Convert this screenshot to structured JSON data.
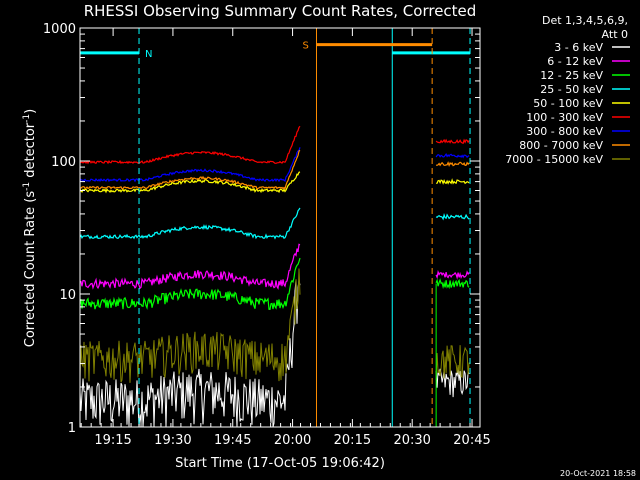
{
  "chart_data": {
    "type": "line",
    "title": "RHESSI Observing Summary Count Rates, Corrected",
    "xlabel": "Start Time (17-Oct-05 19:06:42)",
    "ylabel": "Corrected Count Rate (s",
    "ylabel_sup1": "-1",
    "ylabel_mid": " detector",
    "ylabel_sup2": "-1",
    "ylabel_end": ")",
    "yscale": "log",
    "ylim": [
      1,
      1000
    ],
    "xlim": [
      "19:06:42",
      "20:47:00"
    ],
    "x_ticks": [
      "19:15",
      "19:30",
      "19:45",
      "20:00",
      "20:15",
      "20:30",
      "20:45"
    ],
    "y_ticks": [
      "1",
      "10",
      "100",
      "1000"
    ],
    "legend_header": [
      "Det 1,3,4,5,6,9,",
      "Att 0"
    ],
    "legend_position": "right",
    "footer_date": "20-Oct-2021 18:58",
    "series": [
      {
        "name": "3 - 6 keV",
        "color": "#ffffff",
        "seg1": {
          "start": "19:06:42",
          "end": "20:02:00",
          "level": 1.6,
          "noise": 0.45,
          "end_value": 18
        },
        "seg2": {
          "start": "20:36:00",
          "end": "20:44:30",
          "level": 2.2,
          "noise": 0.25
        }
      },
      {
        "name": "6 - 12 keV",
        "color": "#ff00ff",
        "seg1": {
          "start": "19:06:42",
          "end": "20:02:00",
          "level": 12,
          "noise": 0.08,
          "end_value": 25
        },
        "seg2": {
          "start": "20:36:00",
          "end": "20:44:30",
          "level": 14,
          "noise": 0.05
        }
      },
      {
        "name": "12 - 25 keV",
        "color": "#00ff00",
        "seg1": {
          "start": "19:06:42",
          "end": "20:02:00",
          "level": 8.5,
          "noise": 0.1,
          "end_value": 20
        },
        "seg2": {
          "start": "20:36:00",
          "end": "20:44:30",
          "level": 12,
          "noise": 0.07
        }
      },
      {
        "name": "25 - 50 keV",
        "color": "#00ffff",
        "seg1": {
          "start": "19:06:42",
          "end": "20:02:00",
          "level": 27,
          "noise": 0.03,
          "end_value": 45
        },
        "seg2": {
          "start": "20:36:00",
          "end": "20:44:30",
          "level": 38,
          "noise": 0.04
        }
      },
      {
        "name": "50 - 100 keV",
        "color": "#ffff00",
        "seg1": {
          "start": "19:06:42",
          "end": "20:02:00",
          "level": 60,
          "noise": 0.025,
          "end_value": 85
        },
        "seg2": {
          "start": "20:36:00",
          "end": "20:44:30",
          "level": 70,
          "noise": 0.03
        }
      },
      {
        "name": "100 - 300 keV",
        "color": "#ff0000",
        "seg1": {
          "start": "19:06:42",
          "end": "20:02:00",
          "level": 98,
          "noise": 0.02,
          "end_value": 190
        },
        "seg2": {
          "start": "20:36:00",
          "end": "20:44:30",
          "level": 140,
          "noise": 0.03
        }
      },
      {
        "name": "300 - 800 keV",
        "color": "#0000ff",
        "seg1": {
          "start": "19:06:42",
          "end": "20:02:00",
          "level": 72,
          "noise": 0.02,
          "end_value": 130
        },
        "seg2": {
          "start": "20:36:00",
          "end": "20:44:30",
          "level": 110,
          "noise": 0.03
        }
      },
      {
        "name": "800 - 7000 keV",
        "color": "#ff8c00",
        "seg1": {
          "start": "19:06:42",
          "end": "20:02:00",
          "level": 63,
          "noise": 0.02,
          "end_value": 125
        },
        "seg2": {
          "start": "20:36:00",
          "end": "20:44:30",
          "level": 95,
          "noise": 0.03
        }
      },
      {
        "name": "7000 - 15000 keV",
        "color": "#808000",
        "seg1": {
          "start": "19:06:42",
          "end": "20:02:00",
          "level": 3.3,
          "noise": 0.35,
          "end_value": 15
        },
        "seg2": {
          "start": "20:36:00",
          "end": "20:44:30",
          "level": 3.2,
          "noise": 0.3
        }
      }
    ],
    "night_periods": [
      {
        "label": "N",
        "start": "19:06:42",
        "end": "19:21:30",
        "color": "#00ffff",
        "level": 650
      },
      {
        "label": "",
        "start": "20:25:00",
        "end": "20:44:30",
        "color": "#00ffff",
        "level": 650
      }
    ],
    "saa_periods": [
      {
        "label": "S",
        "start": "20:06:00",
        "end": "20:35:00",
        "color": "#ff8c00",
        "level": 750
      }
    ],
    "attenuator_markers": [
      {
        "time": "20:36:00",
        "color": "#00ff00"
      }
    ]
  }
}
